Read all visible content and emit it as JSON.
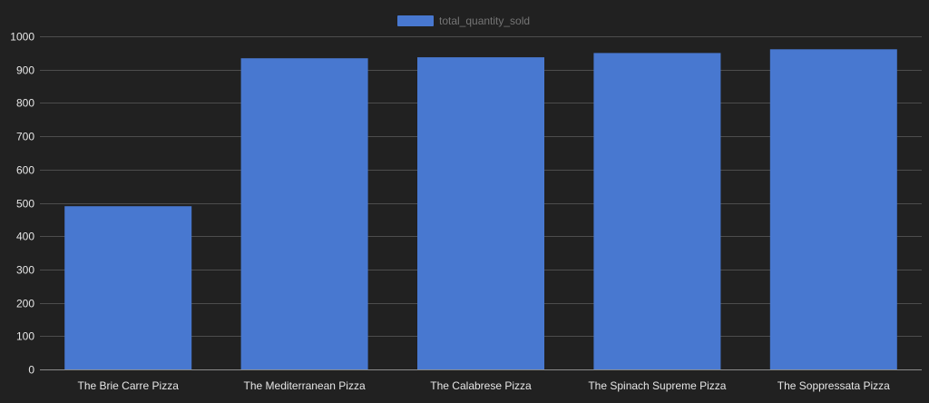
{
  "chart_data": {
    "type": "bar",
    "categories": [
      "The Brie Carre Pizza",
      "The Mediterranean Pizza",
      "The Calabrese Pizza",
      "The Spinach Supreme Pizza",
      "The Soppressata Pizza"
    ],
    "series": [
      {
        "name": "total_quantity_sold",
        "values": [
          490,
          934,
          937,
          950,
          961
        ],
        "color": "#4878d0"
      }
    ],
    "ylim": [
      0,
      1000
    ],
    "yticks": [
      0,
      100,
      200,
      300,
      400,
      500,
      600,
      700,
      800,
      900,
      1000
    ],
    "grid": true,
    "legend_position": "top-center",
    "colors": {
      "background": "#212121",
      "grid": "#4d4d4d",
      "tick_text": "#e6e6e6",
      "legend_text": "#757575"
    }
  }
}
